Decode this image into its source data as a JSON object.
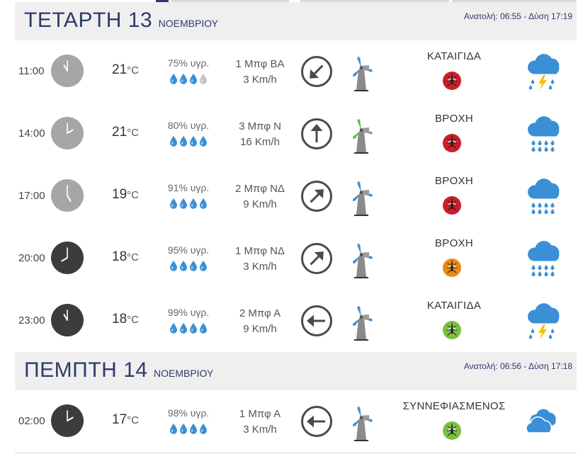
{
  "days": [
    {
      "day_name": "ΤΕΤΑΡΤΗ 13",
      "month": "ΝΟΕΜΒΡΙΟΥ",
      "sun": "Ανατολή: 06:55  - Δύση 17:19",
      "rows": [
        {
          "time": "11:00",
          "clock": "light",
          "hour": 11,
          "temp": "21",
          "unit": "°C",
          "humidity": "75% υγρ.",
          "drops_full": 3,
          "bft": "1 Μπφ ΒΑ",
          "speed": "3 Km/h",
          "arrow_deg": 225,
          "turbine": "blue",
          "condition": "ΚΑΤΑΙΓΙΔΑ",
          "bug": "red",
          "weather": "storm"
        },
        {
          "time": "14:00",
          "clock": "light",
          "hour": 2,
          "temp": "21",
          "unit": "°C",
          "humidity": "80% υγρ.",
          "drops_full": 4,
          "bft": "3 Μπφ Ν",
          "speed": "16 Km/h",
          "arrow_deg": 0,
          "turbine": "green",
          "condition": "ΒΡΟΧΗ",
          "bug": "red",
          "weather": "rain"
        },
        {
          "time": "17:00",
          "clock": "light",
          "hour": 5,
          "temp": "19",
          "unit": "°C",
          "humidity": "91% υγρ.",
          "drops_full": 4,
          "bft": "2 Μπφ ΝΔ",
          "speed": "9 Km/h",
          "arrow_deg": 45,
          "turbine": "blue",
          "condition": "ΒΡΟΧΗ",
          "bug": "red",
          "weather": "rain"
        },
        {
          "time": "20:00",
          "clock": "dark",
          "hour": 8,
          "temp": "18",
          "unit": "°C",
          "humidity": "95% υγρ.",
          "drops_full": 4,
          "bft": "1 Μπφ ΝΔ",
          "speed": "3 Km/h",
          "arrow_deg": 45,
          "turbine": "blue",
          "condition": "ΒΡΟΧΗ",
          "bug": "orange",
          "weather": "rain"
        },
        {
          "time": "23:00",
          "clock": "dark",
          "hour": 11,
          "temp": "18",
          "unit": "°C",
          "humidity": "99% υγρ.",
          "drops_full": 4,
          "bft": "2 Μπφ Α",
          "speed": "9 Km/h",
          "arrow_deg": 270,
          "turbine": "blue",
          "condition": "ΚΑΤΑΙΓΙΔΑ",
          "bug": "green",
          "weather": "storm"
        }
      ]
    },
    {
      "day_name": "ΠΕΜΠΤΗ 14",
      "month": "ΝΟΕΜΒΡΙΟΥ",
      "sun": "Ανατολή: 06:56  - Δύση 17:18",
      "rows": [
        {
          "time": "02:00",
          "clock": "dark",
          "hour": 2,
          "temp": "17",
          "unit": "°C",
          "humidity": "98% υγρ.",
          "drops_full": 4,
          "bft": "1 Μπφ Α",
          "speed": "3 Km/h",
          "arrow_deg": 270,
          "turbine": "blue",
          "condition": "ΣΥΝΝΕΦΙΑΣΜΕΝΟΣ",
          "bug": "green",
          "weather": "cloudy"
        }
      ]
    }
  ],
  "colors": {
    "clock_light": "#a6a6a6",
    "clock_dark": "#3c3c3c",
    "drop": "#3a8fd6",
    "drop_empty": "#c4c4c4",
    "turbine_blue": "#3a8fd6",
    "turbine_green": "#5cc04a",
    "bug_red": "#c8202a",
    "bug_orange": "#e98a1c",
    "bug_green": "#7cc242",
    "cloud": "#3a8fd6",
    "bolt": "#f4c20d"
  }
}
